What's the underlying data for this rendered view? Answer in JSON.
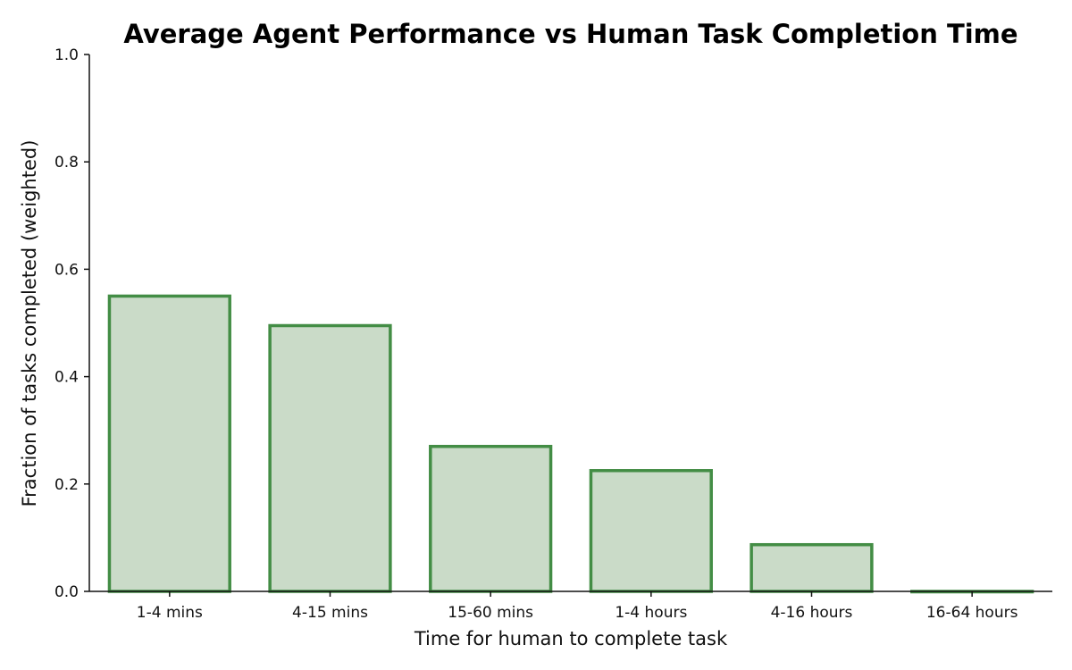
{
  "chart_data": {
    "type": "bar",
    "title": "Average Agent Performance vs Human Task Completion Time",
    "xlabel": "Time for human to complete task",
    "ylabel": "Fraction of tasks completed (weighted)",
    "categories": [
      "1-4 mins",
      "4-15 mins",
      "15-60 mins",
      "1-4 hours",
      "4-16 hours",
      "16-64 hours"
    ],
    "values": [
      0.55,
      0.495,
      0.27,
      0.225,
      0.087,
      0.0
    ],
    "ylim": [
      0,
      1.0
    ],
    "yticks": [
      "0.0",
      "0.2",
      "0.4",
      "0.6",
      "0.8",
      "1.0"
    ],
    "grid": false,
    "legend": "none",
    "bar_fill": "#cadbc8",
    "bar_edge": "#438d45"
  }
}
